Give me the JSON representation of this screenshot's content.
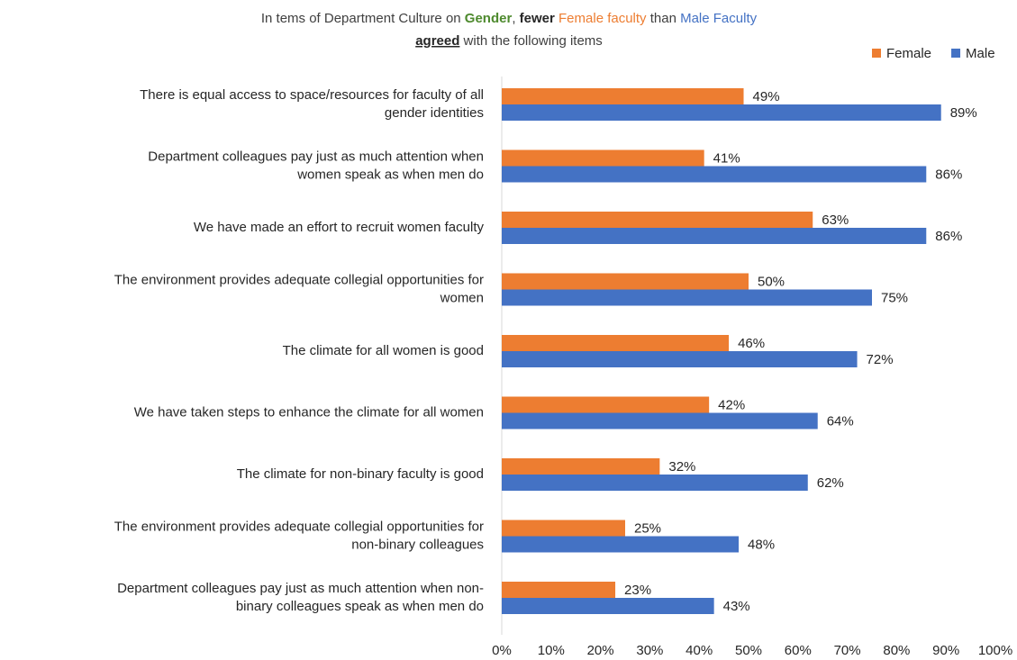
{
  "chart_data": {
    "type": "hbar",
    "title": [
      [
        {
          "text": "In tems of Department Culture on ",
          "color": "#404040"
        },
        {
          "text": "Gender",
          "color": "#4e8a2e",
          "bold": true
        },
        {
          "text": ", ",
          "color": "#404040"
        },
        {
          "text": "fewer",
          "color": "#262626",
          "bold": true
        },
        {
          "text": " ",
          "color": "#404040"
        },
        {
          "text": "Female faculty",
          "color": "#ed7d31"
        },
        {
          "text": " than ",
          "color": "#404040"
        },
        {
          "text": "Male Faculty",
          "color": "#4472c4"
        }
      ],
      [
        {
          "text": "agreed",
          "color": "#262626",
          "bold": true,
          "underline": true
        },
        {
          "text": " with the following items",
          "color": "#404040"
        }
      ]
    ],
    "categories": [
      [
        "There is equal access to space/resources for faculty of all",
        "gender identities"
      ],
      [
        "Department colleagues pay just as much attention when",
        "women speak as when men do"
      ],
      [
        "We have made an effort to recruit women faculty"
      ],
      [
        "The environment provides adequate collegial opportunities for",
        "women"
      ],
      [
        "The climate for all women is good"
      ],
      [
        "We have taken steps to enhance the climate for all women"
      ],
      [
        "The climate for non-binary faculty is good"
      ],
      [
        "The environment provides adequate collegial opportunities for",
        "non-binary colleagues"
      ],
      [
        "Department colleagues pay just as much attention when non-",
        "binary colleagues speak as when men do"
      ]
    ],
    "series": [
      {
        "name": "Female",
        "color": "#ed7d31",
        "values": [
          49,
          41,
          63,
          50,
          46,
          42,
          32,
          25,
          23
        ],
        "value_labels": [
          "49%",
          "41%",
          "63%",
          "50%",
          "46%",
          "42%",
          "32%",
          "25%",
          "23%"
        ]
      },
      {
        "name": "Male",
        "color": "#4472c4",
        "values": [
          89,
          86,
          86,
          75,
          72,
          64,
          62,
          48,
          43
        ],
        "value_labels": [
          "89%",
          "86%",
          "86%",
          "75%",
          "72%",
          "64%",
          "62%",
          "48%",
          "43%"
        ]
      }
    ],
    "xlim": [
      0,
      100
    ],
    "xticks": [
      {
        "value": 0,
        "label": "0%"
      },
      {
        "value": 10,
        "label": "10%"
      },
      {
        "value": 20,
        "label": "20%"
      },
      {
        "value": 30,
        "label": "30%"
      },
      {
        "value": 40,
        "label": "40%"
      },
      {
        "value": 50,
        "label": "50%"
      },
      {
        "value": 60,
        "label": "60%"
      },
      {
        "value": 70,
        "label": "70%"
      },
      {
        "value": 80,
        "label": "80%"
      },
      {
        "value": 90,
        "label": "90%"
      },
      {
        "value": 100,
        "label": "100%"
      }
    ],
    "legend": "top-right"
  }
}
